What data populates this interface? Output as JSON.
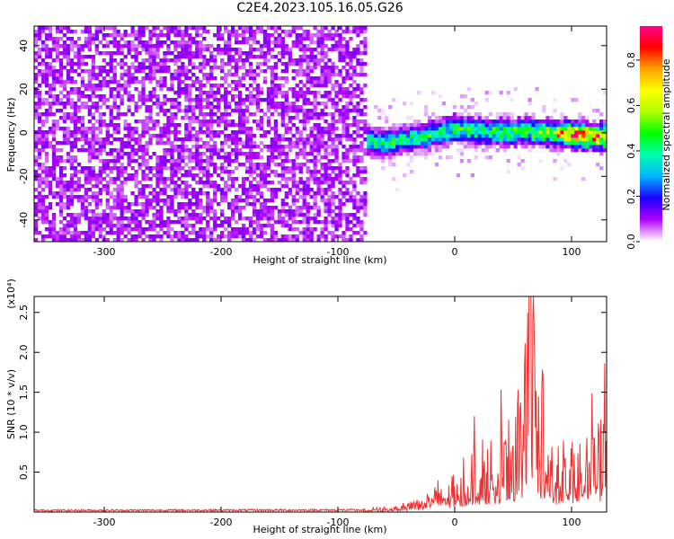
{
  "title": "C2E4.2023.105.16.05.G26",
  "chart_data": [
    {
      "type": "heatmap",
      "title": "C2E4.2023.105.16.05.G26",
      "xlabel": "Height of straight line (km)",
      "ylabel": "Frequency (Hz)",
      "xlim": [
        -360,
        130
      ],
      "ylim": [
        -50,
        49
      ],
      "x_ticks": [
        -300,
        -200,
        -100,
        0,
        100
      ],
      "x_tick_labels": [
        "-300",
        "-200",
        "-100",
        "0",
        "100"
      ],
      "y_ticks": [
        -40,
        -20,
        0,
        20,
        40
      ],
      "y_tick_labels": [
        "-40",
        "-20",
        "0",
        "20",
        "40"
      ],
      "colorbar": {
        "label": "Normalized spectral amplitude",
        "range": [
          0,
          0.95
        ],
        "ticks": [
          0.0,
          0.2,
          0.4,
          0.6,
          0.8
        ],
        "tick_labels": [
          "0.0",
          "0.2",
          "0.4",
          "0.6",
          "0.8"
        ],
        "colors": [
          "#ffffff",
          "#b000ff",
          "#1c00ff",
          "#00b4ff",
          "#00ffb0",
          "#00ff00",
          "#b0ff00",
          "#ffff00",
          "#ffa000",
          "#ff0000",
          "#ff0090"
        ]
      },
      "noise_region": {
        "x_range": [
          -360,
          -75
        ],
        "amplitude": 0.1
      },
      "signal_track": {
        "x": [
          -100,
          -80,
          -60,
          -40,
          -20,
          0,
          20,
          40,
          60,
          80,
          100,
          130
        ],
        "center_freq": [
          1,
          -3,
          -5,
          -3,
          -1,
          2,
          1,
          0,
          1,
          0,
          -1,
          -2
        ],
        "peak_amplitude": [
          0.2,
          0.4,
          0.45,
          0.45,
          0.45,
          0.45,
          0.45,
          0.5,
          0.5,
          0.6,
          0.9,
          0.8
        ]
      },
      "grid": false
    },
    {
      "type": "line",
      "xlabel": "Height of straight line (km)",
      "ylabel": "SNR (10 * v/v)",
      "y_exponent_label": "(x10⁴)",
      "y_multiplier": 10000,
      "xlim": [
        -360,
        130
      ],
      "ylim": [
        0,
        27000
      ],
      "x_ticks": [
        -300,
        -200,
        -100,
        0,
        100
      ],
      "x_tick_labels": [
        "-300",
        "-200",
        "-100",
        "0",
        "100"
      ],
      "y_ticks": [
        5000,
        10000,
        15000,
        20000,
        25000
      ],
      "y_tick_labels": [
        "0.5",
        "1.0",
        "1.5",
        "2.0",
        "2.5"
      ],
      "series": [
        {
          "color": "#ee3030",
          "x": [
            -360,
            -80,
            -60,
            -40,
            -20,
            0,
            10,
            20,
            30,
            40,
            50,
            58,
            65,
            72,
            80,
            90,
            100,
            110,
            120,
            130
          ],
          "y": [
            250,
            300,
            500,
            1200,
            2400,
            3600,
            5000,
            6000,
            6500,
            7000,
            8000,
            12000,
            27000,
            10000,
            7000,
            6000,
            5500,
            7500,
            8000,
            9000
          ],
          "note_peaks_x": [
            17,
            40,
            54,
            60,
            64,
            67,
            75,
            100,
            118,
            128
          ]
        }
      ],
      "grid": false
    }
  ]
}
